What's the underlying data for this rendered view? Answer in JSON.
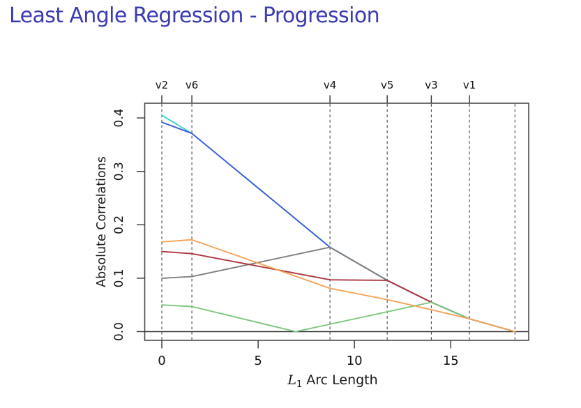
{
  "slide": {
    "title": "Least Angle Regression - Progression",
    "title_color": "#3B3BB2"
  },
  "chart_data": {
    "type": "line",
    "title": "",
    "xlabel_math": "L",
    "xlabel_sub": "1",
    "xlabel_rest": " Arc Length",
    "ylabel": "Absolute Correlations",
    "xticks": [
      0,
      5,
      10,
      15
    ],
    "yticks": [
      "0.0",
      "0.1",
      "0.2",
      "0.3",
      "0.4"
    ],
    "xlim": [
      -0.9,
      19.05
    ],
    "ylim": [
      -0.017,
      0.428
    ],
    "grid": false,
    "legend": "none",
    "axis_color": "#4a4a4a",
    "event_line_style": "dashed",
    "events": [
      {
        "x": 0,
        "label": "v2"
      },
      {
        "x": 1.56,
        "label": "v6"
      },
      {
        "x": 8.73,
        "label": "v4"
      },
      {
        "x": 11.7,
        "label": "v5"
      },
      {
        "x": 13.99,
        "label": "v3"
      },
      {
        "x": 15.97,
        "label": "v1"
      },
      {
        "x": 18.33,
        "label": ""
      }
    ],
    "series": [
      {
        "name": "v2",
        "color": "#3ED1CC",
        "points": [
          [
            0,
            0.405
          ],
          [
            1.56,
            0.371
          ],
          [
            8.73,
            0.158
          ],
          [
            11.7,
            0.096
          ],
          [
            13.99,
            0.055
          ],
          [
            15.97,
            0.024
          ],
          [
            18.33,
            0
          ]
        ]
      },
      {
        "name": "v6",
        "color": "#3E5CD6",
        "points": [
          [
            0,
            0.392
          ],
          [
            1.56,
            0.371
          ],
          [
            8.73,
            0.158
          ],
          [
            11.7,
            0.096
          ],
          [
            13.99,
            0.055
          ],
          [
            15.97,
            0.024
          ],
          [
            18.33,
            0
          ]
        ]
      },
      {
        "name": "v4",
        "color": "#7F7F7F",
        "points": [
          [
            0,
            0.1
          ],
          [
            1.56,
            0.103
          ],
          [
            8.73,
            0.158
          ],
          [
            11.7,
            0.096
          ],
          [
            13.99,
            0.055
          ],
          [
            15.97,
            0.024
          ],
          [
            18.33,
            0
          ]
        ]
      },
      {
        "name": "v5",
        "color": "#AF3740",
        "points": [
          [
            0,
            0.15
          ],
          [
            1.56,
            0.146
          ],
          [
            8.73,
            0.097
          ],
          [
            11.7,
            0.096
          ],
          [
            13.99,
            0.055
          ],
          [
            15.97,
            0.024
          ],
          [
            18.33,
            0
          ]
        ]
      },
      {
        "name": "v3",
        "color": "#7CC67C",
        "points": [
          [
            0,
            0.05
          ],
          [
            1.56,
            0.047
          ],
          [
            6.95,
            0
          ],
          [
            13.99,
            0.055
          ],
          [
            15.97,
            0.024
          ],
          [
            18.33,
            0
          ]
        ]
      },
      {
        "name": "v1",
        "color": "#F4A45A",
        "points": [
          [
            0,
            0.168
          ],
          [
            1.56,
            0.172
          ],
          [
            8.73,
            0.081
          ],
          [
            11.7,
            0.06
          ],
          [
            13.99,
            0.041
          ],
          [
            15.97,
            0.024
          ],
          [
            18.33,
            0
          ]
        ]
      }
    ]
  }
}
